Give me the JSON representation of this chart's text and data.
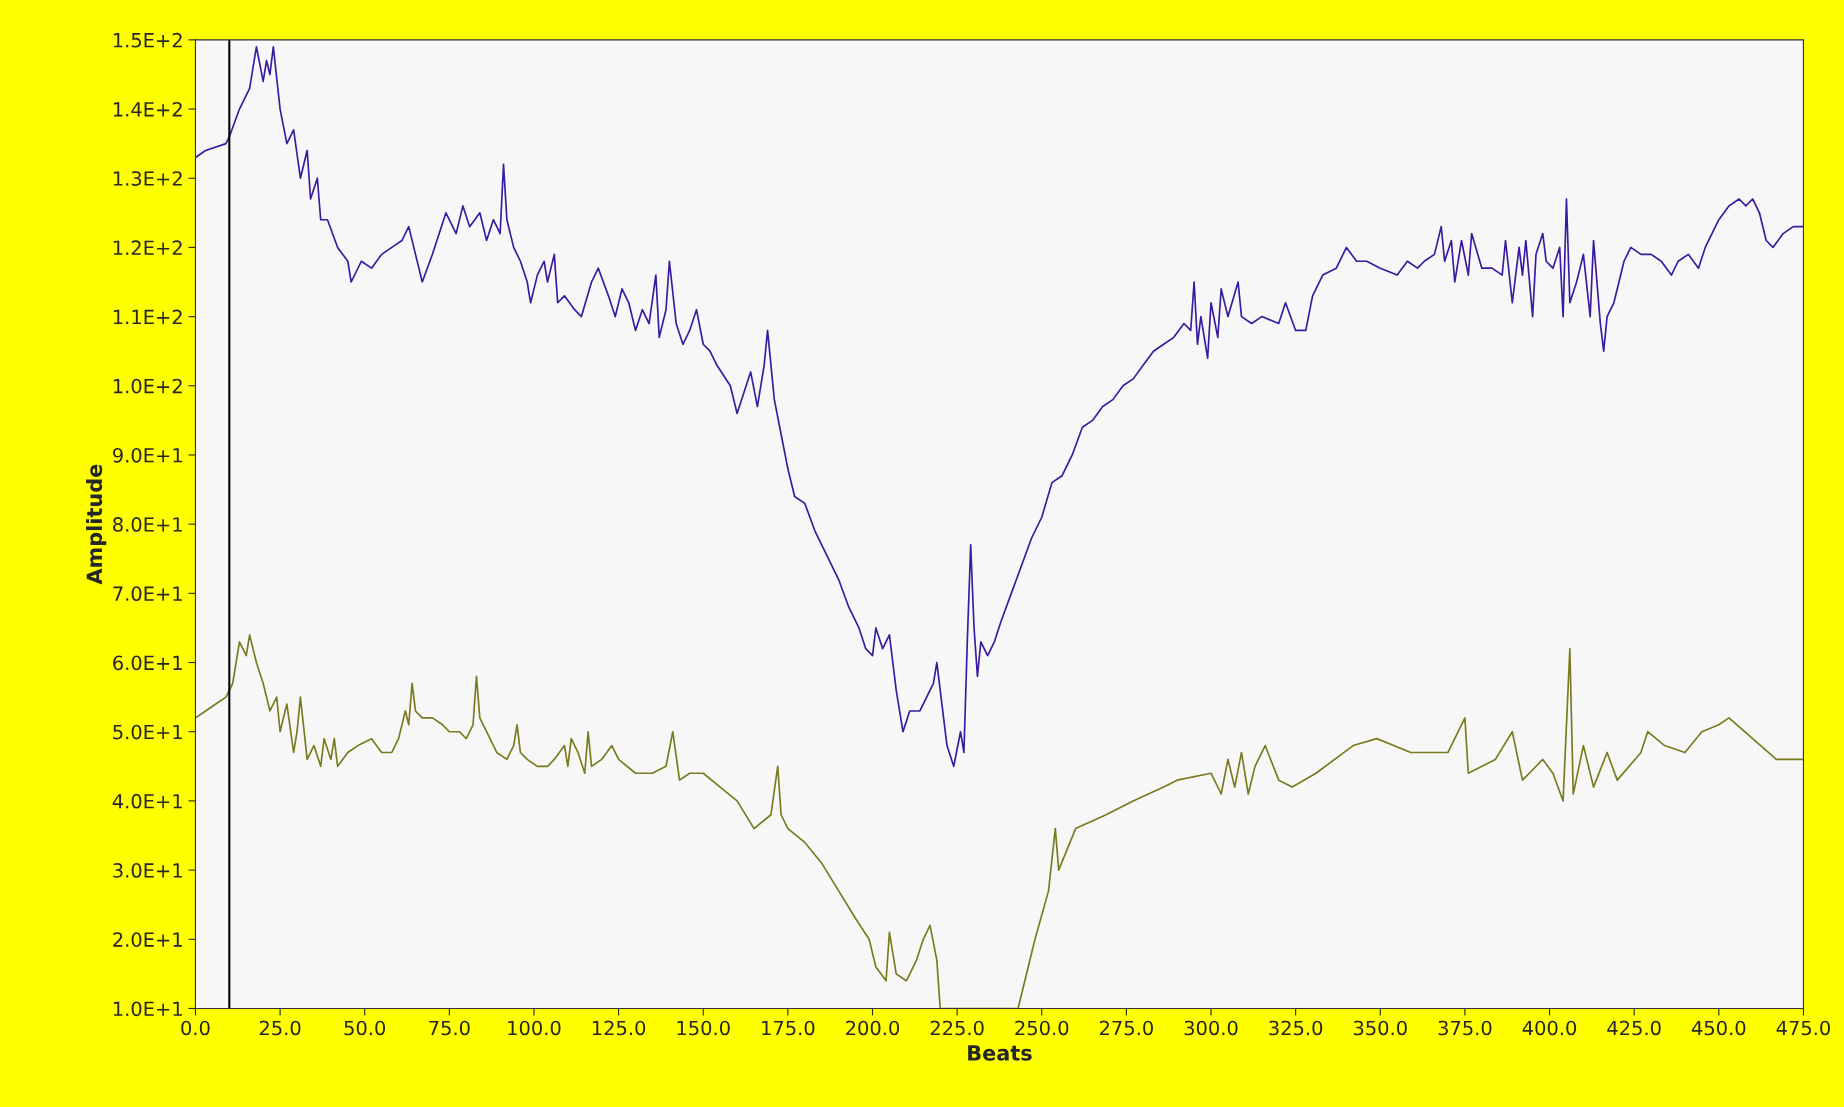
{
  "chart_data": {
    "type": "line",
    "xlabel": "Beats",
    "ylabel": "Amplitude",
    "xlim": [
      0,
      475
    ],
    "ylim": [
      10,
      150
    ],
    "xticks": [
      {
        "value": 0,
        "label": "0.0"
      },
      {
        "value": 25,
        "label": "25.0"
      },
      {
        "value": 50,
        "label": "50.0"
      },
      {
        "value": 75,
        "label": "75.0"
      },
      {
        "value": 100,
        "label": "100.0"
      },
      {
        "value": 125,
        "label": "125.0"
      },
      {
        "value": 150,
        "label": "150.0"
      },
      {
        "value": 175,
        "label": "175.0"
      },
      {
        "value": 200,
        "label": "200.0"
      },
      {
        "value": 225,
        "label": "225.0"
      },
      {
        "value": 250,
        "label": "250.0"
      },
      {
        "value": 275,
        "label": "275.0"
      },
      {
        "value": 300,
        "label": "300.0"
      },
      {
        "value": 325,
        "label": "325.0"
      },
      {
        "value": 350,
        "label": "350.0"
      },
      {
        "value": 375,
        "label": "375.0"
      },
      {
        "value": 400,
        "label": "400.0"
      },
      {
        "value": 425,
        "label": "425.0"
      },
      {
        "value": 450,
        "label": "450.0"
      },
      {
        "value": 475,
        "label": "475.0"
      }
    ],
    "yticks": [
      {
        "value": 10,
        "label": "1.0E+1"
      },
      {
        "value": 20,
        "label": "2.0E+1"
      },
      {
        "value": 30,
        "label": "3.0E+1"
      },
      {
        "value": 40,
        "label": "4.0E+1"
      },
      {
        "value": 50,
        "label": "5.0E+1"
      },
      {
        "value": 60,
        "label": "6.0E+1"
      },
      {
        "value": 70,
        "label": "7.0E+1"
      },
      {
        "value": 80,
        "label": "8.0E+1"
      },
      {
        "value": 90,
        "label": "9.0E+1"
      },
      {
        "value": 100,
        "label": "1.0E+2"
      },
      {
        "value": 110,
        "label": "1.1E+2"
      },
      {
        "value": 120,
        "label": "1.2E+2"
      },
      {
        "value": 130,
        "label": "1.3E+2"
      },
      {
        "value": 140,
        "label": "1.4E+2"
      },
      {
        "value": 150,
        "label": "1.5E+2"
      }
    ],
    "grid": false,
    "line_style": "solid",
    "marker": "none",
    "ref_lines": [
      {
        "axis": "x",
        "value": 10,
        "color": "#000000"
      }
    ],
    "series": [
      {
        "color": "#3a1aa0",
        "x": [
          0,
          3,
          9,
          10,
          13,
          16,
          18,
          20,
          21,
          22,
          23,
          25,
          27,
          29,
          31,
          33,
          34,
          36,
          37,
          39,
          42,
          45,
          46,
          49,
          52,
          55,
          58,
          61,
          63,
          65,
          67,
          70,
          72,
          74,
          77,
          79,
          81,
          84,
          86,
          88,
          90,
          91,
          92,
          94,
          96,
          98,
          99,
          101,
          103,
          104,
          106,
          107,
          109,
          112,
          114,
          117,
          119,
          122,
          124,
          126,
          128,
          130,
          132,
          134,
          136,
          137,
          139,
          140,
          142,
          144,
          146,
          148,
          150,
          152,
          154,
          158,
          160,
          162,
          164,
          166,
          168,
          169,
          171,
          173,
          175,
          177,
          180,
          183,
          186,
          190,
          193,
          196,
          198,
          200,
          201,
          203,
          205,
          207,
          209,
          211,
          214,
          216,
          218,
          219,
          221,
          222,
          224,
          226,
          227,
          228,
          229,
          230,
          231,
          232,
          234,
          236,
          238,
          241,
          244,
          247,
          250,
          253,
          256,
          259,
          262,
          265,
          268,
          271,
          274,
          277,
          280,
          283,
          286,
          289,
          292,
          294,
          295,
          296,
          297,
          299,
          300,
          302,
          303,
          305,
          308,
          309,
          312,
          315,
          320,
          322,
          325,
          328,
          330,
          333,
          337,
          340,
          343,
          346,
          350,
          355,
          358,
          361,
          363,
          366,
          368,
          369,
          371,
          372,
          374,
          376,
          377,
          380,
          383,
          386,
          387,
          389,
          391,
          392,
          393,
          395,
          396,
          398,
          399,
          401,
          403,
          404,
          405,
          406,
          408,
          410,
          412,
          413,
          415,
          416,
          417,
          419,
          422,
          424,
          427,
          430,
          433,
          436,
          438,
          441,
          444,
          446,
          450,
          453,
          456,
          458,
          460,
          462,
          464,
          466,
          469,
          472,
          475
        ],
        "values": [
          133,
          134,
          135,
          136,
          140,
          143,
          149,
          144,
          147,
          145,
          149,
          140,
          135,
          137,
          130,
          134,
          127,
          130,
          124,
          124,
          120,
          118,
          115,
          118,
          117,
          119,
          120,
          121,
          123,
          119,
          115,
          119,
          122,
          125,
          122,
          126,
          123,
          125,
          121,
          124,
          122,
          132,
          124,
          120,
          118,
          115,
          112,
          116,
          118,
          115,
          119,
          112,
          113,
          111,
          110,
          115,
          117,
          113,
          110,
          114,
          112,
          108,
          111,
          109,
          116,
          107,
          111,
          118,
          109,
          106,
          108,
          111,
          106,
          105,
          103,
          100,
          96,
          99,
          102,
          97,
          103,
          108,
          98,
          93,
          88,
          84,
          83,
          79,
          76,
          72,
          68,
          65,
          62,
          61,
          65,
          62,
          64,
          56,
          50,
          53,
          53,
          55,
          57,
          60,
          52,
          48,
          45,
          50,
          47,
          63,
          77,
          65,
          58,
          63,
          61,
          63,
          66,
          70,
          74,
          78,
          81,
          86,
          87,
          90,
          94,
          95,
          97,
          98,
          100,
          101,
          103,
          105,
          106,
          107,
          109,
          108,
          115,
          106,
          110,
          104,
          112,
          107,
          114,
          110,
          115,
          110,
          109,
          110,
          109,
          112,
          108,
          108,
          113,
          116,
          117,
          120,
          118,
          118,
          117,
          116,
          118,
          117,
          118,
          119,
          123,
          118,
          121,
          115,
          121,
          116,
          122,
          117,
          117,
          116,
          121,
          112,
          120,
          116,
          121,
          110,
          119,
          122,
          118,
          117,
          120,
          110,
          127,
          112,
          115,
          119,
          110,
          121,
          109,
          105,
          110,
          112,
          118,
          120,
          119,
          119,
          118,
          116,
          118,
          119,
          117,
          120,
          124,
          126,
          127,
          126,
          127,
          125,
          121,
          120,
          122,
          123,
          123
        ]
      },
      {
        "color": "#7a7a1e",
        "x": [
          0,
          3,
          6,
          9,
          11,
          12,
          13,
          15,
          16,
          18,
          20,
          22,
          24,
          25,
          27,
          29,
          30,
          31,
          33,
          35,
          37,
          38,
          40,
          41,
          42,
          45,
          48,
          52,
          55,
          58,
          60,
          62,
          63,
          64,
          65,
          67,
          70,
          73,
          75,
          78,
          80,
          82,
          83,
          84,
          86,
          89,
          92,
          94,
          95,
          96,
          98,
          101,
          104,
          106,
          109,
          110,
          111,
          113,
          115,
          116,
          117,
          120,
          123,
          125,
          130,
          135,
          139,
          141,
          143,
          146,
          150,
          155,
          160,
          165,
          170,
          172,
          173,
          175,
          180,
          185,
          190,
          195,
          199,
          201,
          204,
          205,
          207,
          210,
          213,
          215,
          217,
          219,
          220,
          243,
          248,
          252,
          254,
          255,
          260,
          269,
          277,
          286,
          290,
          300,
          303,
          305,
          307,
          309,
          311,
          313,
          316,
          320,
          324,
          331,
          342,
          349,
          359,
          370,
          375,
          376,
          384,
          389,
          392,
          398,
          401,
          404,
          406,
          407,
          410,
          413,
          417,
          420,
          427,
          429,
          434,
          440,
          445,
          450,
          453,
          460,
          467,
          475
        ],
        "values": [
          52,
          53,
          54,
          55,
          57,
          60,
          63,
          61,
          64,
          60,
          57,
          53,
          55,
          50,
          54,
          47,
          50,
          55,
          46,
          48,
          45,
          49,
          46,
          49,
          45,
          47,
          48,
          49,
          47,
          47,
          49,
          53,
          51,
          57,
          53,
          52,
          52,
          51,
          50,
          50,
          49,
          51,
          58,
          52,
          50,
          47,
          46,
          48,
          51,
          47,
          46,
          45,
          45,
          46,
          48,
          45,
          49,
          47,
          44,
          50,
          45,
          46,
          48,
          46,
          44,
          44,
          45,
          50,
          43,
          44,
          44,
          42,
          40,
          36,
          38,
          45,
          38,
          36,
          34,
          31,
          27,
          23,
          20,
          16,
          14,
          21,
          15,
          14,
          17,
          20,
          22,
          17,
          10,
          10,
          20,
          27,
          36,
          30,
          36,
          38,
          40,
          42,
          43,
          44,
          41,
          46,
          42,
          47,
          41,
          45,
          48,
          43,
          42,
          44,
          48,
          49,
          47,
          47,
          52,
          44,
          46,
          50,
          43,
          46,
          44,
          40,
          62,
          41,
          48,
          42,
          47,
          43,
          47,
          50,
          48,
          47,
          50,
          51,
          52,
          49,
          46,
          46
        ]
      }
    ]
  }
}
